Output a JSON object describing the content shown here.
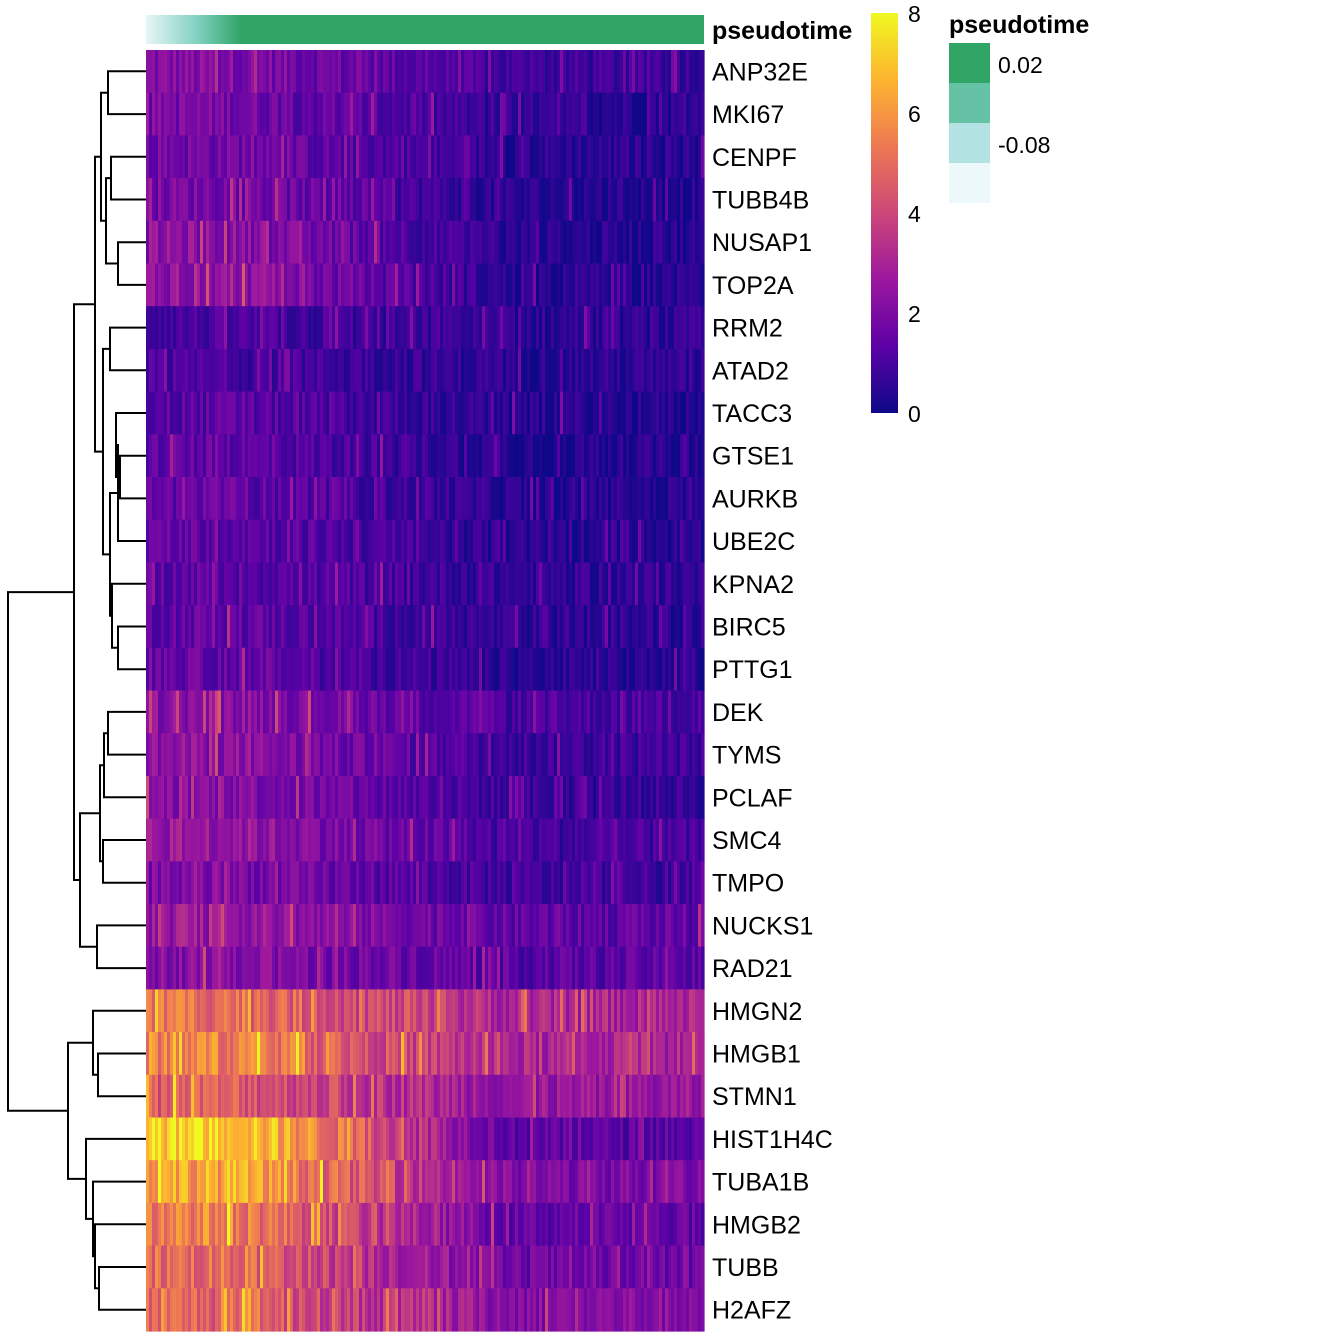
{
  "chart_data": {
    "type": "heatmap",
    "title": "",
    "xlabel": "",
    "ylabel": "",
    "column_annotation": {
      "name": "pseudotime",
      "color_low": "#e8f6f7",
      "color_mid": "#7fd0c0",
      "color_high": "#31a566",
      "ramp_fraction": 0.17
    },
    "color_scale": {
      "range": [
        0,
        8
      ],
      "ticks": [
        "8",
        "6",
        "4",
        "2",
        "0"
      ],
      "stops": [
        "#0d0887",
        "#5c01a6",
        "#9c179e",
        "#cc4778",
        "#ed7953",
        "#fdb42f",
        "#f0f921"
      ]
    },
    "pseudotime_legend": {
      "title": "pseudotime",
      "colors": [
        "#31a566",
        "#66c2a5",
        "#b2e2e2",
        "#edf8fb"
      ],
      "labels": [
        "0.02",
        "",
        "-0.08",
        ""
      ]
    },
    "rows": [
      {
        "gene": "ANP32E",
        "start": 2.1,
        "end": 0.8
      },
      {
        "gene": "MKI67",
        "start": 1.9,
        "end": 0.5
      },
      {
        "gene": "CENPF",
        "start": 1.8,
        "end": 0.5
      },
      {
        "gene": "TUBB4B",
        "start": 1.9,
        "end": 0.4
      },
      {
        "gene": "NUSAP1",
        "start": 2.3,
        "end": 0.4
      },
      {
        "gene": "TOP2A",
        "start": 2.4,
        "end": 0.4
      },
      {
        "gene": "RRM2",
        "start": 1.0,
        "end": 0.5
      },
      {
        "gene": "ATAD2",
        "start": 1.0,
        "end": 0.5
      },
      {
        "gene": "TACC3",
        "start": 1.3,
        "end": 0.4
      },
      {
        "gene": "GTSE1",
        "start": 1.4,
        "end": 0.4
      },
      {
        "gene": "AURKB",
        "start": 1.5,
        "end": 0.4
      },
      {
        "gene": "UBE2C",
        "start": 1.5,
        "end": 0.4
      },
      {
        "gene": "KPNA2",
        "start": 1.4,
        "end": 0.6
      },
      {
        "gene": "BIRC5",
        "start": 1.5,
        "end": 0.5
      },
      {
        "gene": "PTTG1",
        "start": 1.5,
        "end": 0.4
      },
      {
        "gene": "DEK",
        "start": 2.3,
        "end": 1.0
      },
      {
        "gene": "TYMS",
        "start": 2.3,
        "end": 0.8
      },
      {
        "gene": "PCLAF",
        "start": 2.2,
        "end": 0.7
      },
      {
        "gene": "SMC4",
        "start": 2.6,
        "end": 0.9
      },
      {
        "gene": "TMPO",
        "start": 2.0,
        "end": 0.8
      },
      {
        "gene": "NUCKS1",
        "start": 2.6,
        "end": 1.4
      },
      {
        "gene": "RAD21",
        "start": 2.2,
        "end": 1.3
      },
      {
        "gene": "HMGN2",
        "start": 5.2,
        "end": 3.0
      },
      {
        "gene": "HMGB1",
        "start": 5.6,
        "end": 3.0
      },
      {
        "gene": "STMN1",
        "start": 4.6,
        "end": 2.5
      },
      {
        "gene": "HIST1H4C",
        "start": 7.4,
        "end": 1.3
      },
      {
        "gene": "TUBA1B",
        "start": 6.4,
        "end": 2.0
      },
      {
        "gene": "HMGB2",
        "start": 5.6,
        "end": 1.5
      },
      {
        "gene": "TUBB",
        "start": 5.0,
        "end": 1.6
      },
      {
        "gene": "H2AFZ",
        "start": 4.8,
        "end": 2.2
      }
    ]
  }
}
